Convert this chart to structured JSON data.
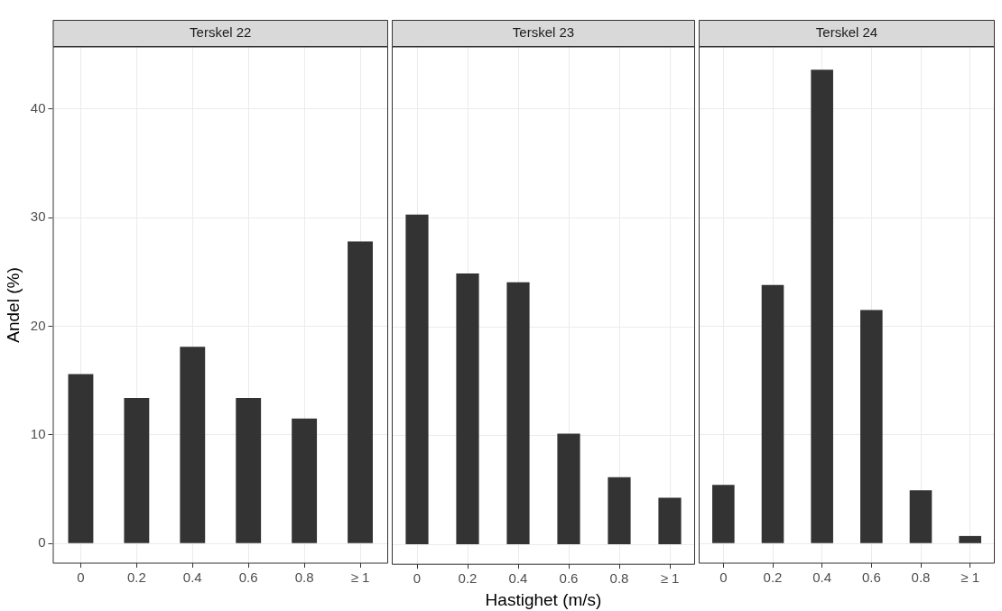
{
  "chart_data": [
    {
      "type": "bar",
      "title": "Terskel 22",
      "ylabel": "Andel (%)",
      "categories": [
        "0",
        "0.2",
        "0.4",
        "0.6",
        "0.8",
        "≥ 1"
      ],
      "values": [
        15.6,
        13.4,
        18.1,
        13.4,
        11.5,
        27.8
      ],
      "color": "#333333",
      "ylim": [
        -1.8,
        45.7
      ],
      "yticks": [
        0,
        10,
        20,
        30,
        40
      ],
      "grid": true
    },
    {
      "type": "bar",
      "title": "Terskel 23",
      "xlabel": "Hastighet (m/s)",
      "categories": [
        "0",
        "0.2",
        "0.4",
        "0.6",
        "0.8",
        "≥ 1"
      ],
      "values": [
        30.3,
        24.9,
        24.1,
        10.2,
        6.2,
        4.3
      ],
      "color": "#333333",
      "ylim": [
        -1.8,
        45.7
      ],
      "yticks": [
        0,
        10,
        20,
        30,
        40
      ],
      "grid": true,
      "tick_labels": "x"
    },
    {
      "type": "bar",
      "title": "Terskel 24",
      "categories": [
        "0",
        "0.2",
        "0.4",
        "0.6",
        "0.8",
        "≥ 1"
      ],
      "values": [
        5.4,
        23.8,
        43.6,
        21.5,
        4.9,
        0.7
      ],
      "color": "#333333",
      "ylim": [
        -1.8,
        45.7
      ],
      "yticks": [
        0,
        10,
        20,
        30,
        40
      ],
      "grid": true,
      "tick_labels": "x"
    }
  ]
}
